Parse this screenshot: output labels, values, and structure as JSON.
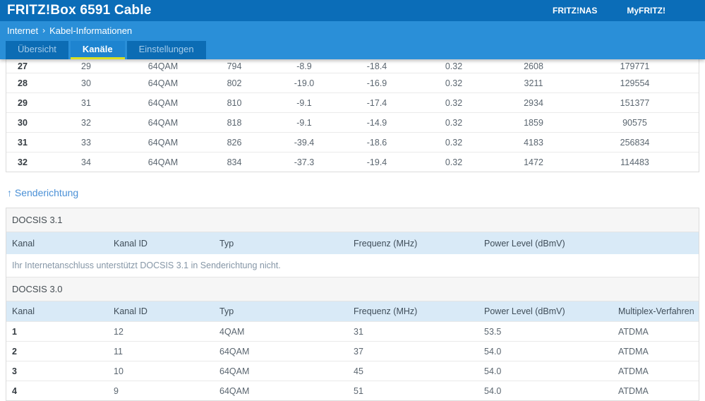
{
  "header": {
    "title": "FRITZ!Box 6591 Cable",
    "links": [
      {
        "label": "FRITZ!NAS",
        "name": "fritznas-link"
      },
      {
        "label": "MyFRITZ!",
        "name": "myfritz-link"
      }
    ]
  },
  "breadcrumb": {
    "items": [
      "Internet",
      "Kabel-Informationen"
    ],
    "separator": "›"
  },
  "tabs": [
    {
      "label": "Übersicht",
      "name": "tab-uebersicht",
      "active": false
    },
    {
      "label": "Kanäle",
      "name": "tab-kanaele",
      "active": true
    },
    {
      "label": "Einstellungen",
      "name": "tab-einstellungen",
      "active": false
    }
  ],
  "colors": {
    "header_blue": "#0b6db8",
    "bar_blue": "#2a8fd8",
    "active_tab_underline": "#d9e021",
    "table_header_bg": "#d9eaf7"
  },
  "downstream_table": {
    "rows": [
      [
        "27",
        "29",
        "64QAM",
        "794",
        "-8.9",
        "-18.4",
        "0.32",
        "2608",
        "179771"
      ],
      [
        "28",
        "30",
        "64QAM",
        "802",
        "-19.0",
        "-16.9",
        "0.32",
        "3211",
        "129554"
      ],
      [
        "29",
        "31",
        "64QAM",
        "810",
        "-9.1",
        "-17.4",
        "0.32",
        "2934",
        "151377"
      ],
      [
        "30",
        "32",
        "64QAM",
        "818",
        "-9.1",
        "-14.9",
        "0.32",
        "1859",
        "90575"
      ],
      [
        "31",
        "33",
        "64QAM",
        "826",
        "-39.4",
        "-18.6",
        "0.32",
        "4183",
        "256834"
      ],
      [
        "32",
        "34",
        "64QAM",
        "834",
        "-37.3",
        "-19.4",
        "0.32",
        "1472",
        "114483"
      ]
    ]
  },
  "upstream": {
    "heading": "↑ Senderichtung",
    "docsis31": {
      "label": "DOCSIS 3.1",
      "columns": [
        "Kanal",
        "Kanal ID",
        "Typ",
        "Frequenz (MHz)",
        "Power Level (dBmV)"
      ],
      "message": "Ihr Internetanschluss unterstützt DOCSIS 3.1 in Senderichtung nicht."
    },
    "docsis30": {
      "label": "DOCSIS 3.0",
      "columns": [
        "Kanal",
        "Kanal ID",
        "Typ",
        "Frequenz (MHz)",
        "Power Level (dBmV)",
        "Multiplex-Verfahren"
      ],
      "rows": [
        [
          "1",
          "12",
          "4QAM",
          "31",
          "53.5",
          "ATDMA"
        ],
        [
          "2",
          "11",
          "64QAM",
          "37",
          "54.0",
          "ATDMA"
        ],
        [
          "3",
          "10",
          "64QAM",
          "45",
          "54.0",
          "ATDMA"
        ],
        [
          "4",
          "9",
          "64QAM",
          "51",
          "54.0",
          "ATDMA"
        ]
      ]
    }
  }
}
